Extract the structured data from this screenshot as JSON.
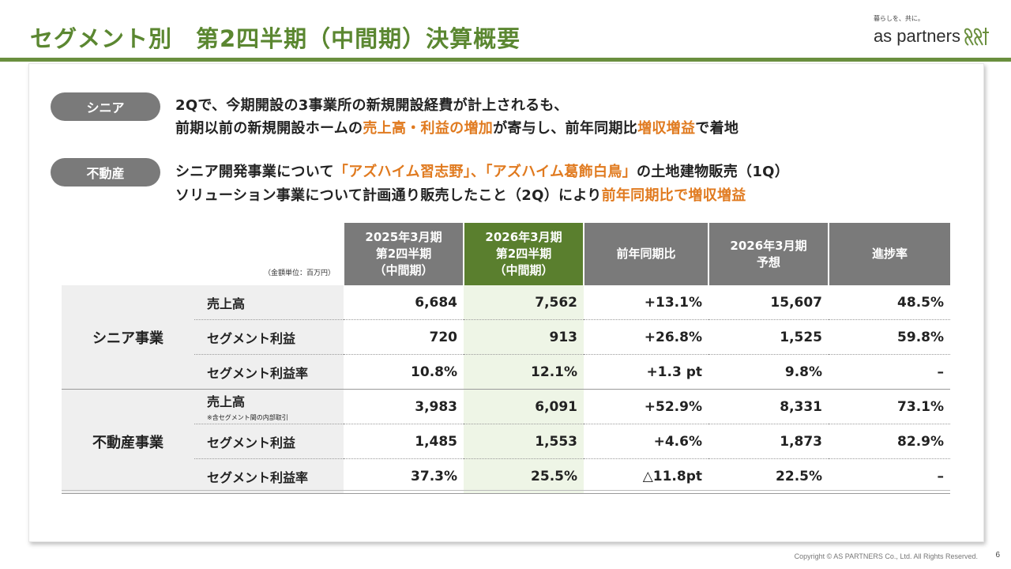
{
  "header": {
    "title": "セグメント別　第2四半期（中間期）決算概要",
    "logo_tagline": "暮らしを、共に。",
    "logo_name": "as partners"
  },
  "summaries": [
    {
      "tag": "シニア",
      "line1": "2Qで、今期開設の3事業所の新規開設経費が計上されるも、",
      "line2_pre": "前期以前の新規開設ホームの",
      "line2_hl1": "売上高・利益の増加",
      "line2_mid": "が寄与し、前年同期比",
      "line2_hl2": "増収増益",
      "line2_post": "で着地"
    },
    {
      "tag": "不動産",
      "line1_pre": "シニア開発事業について",
      "line1_hl": "「アズハイム習志野」、「アズハイム葛飾白鳥」",
      "line1_post": "の土地建物販売（1Q）",
      "line2_pre": "ソリューション事業について計画通り販売したこと（2Q）により",
      "line2_hl": "前年同期比で増収増益"
    }
  ],
  "table": {
    "unit_note": "（金額単位：百万円）",
    "headers": [
      [
        "2025年3月期",
        "第2四半期",
        "（中間期）"
      ],
      [
        "2026年3月期",
        "第2四半期",
        "（中間期）"
      ],
      [
        "前年同期比"
      ],
      [
        "2026年3月期",
        "予想"
      ],
      [
        "進捗率"
      ]
    ],
    "segments": [
      {
        "name": "シニア事業",
        "rows": [
          {
            "label": "売上高",
            "note": "",
            "prev": "6,684",
            "curr": "7,562",
            "yoy": "+13.1%",
            "forecast": "15,607",
            "progress": "48.5%"
          },
          {
            "label": "セグメント利益",
            "note": "",
            "prev": "720",
            "curr": "913",
            "yoy": "+26.8%",
            "forecast": "1,525",
            "progress": "59.8%"
          },
          {
            "label": "セグメント利益率",
            "note": "",
            "prev": "10.8%",
            "curr": "12.1%",
            "yoy": "+1.3 pt",
            "forecast": "9.8%",
            "progress": "–"
          }
        ]
      },
      {
        "name": "不動産事業",
        "rows": [
          {
            "label": "売上高",
            "note": "※含セグメント間の内部取引",
            "prev": "3,983",
            "curr": "6,091",
            "yoy": "+52.9%",
            "forecast": "8,331",
            "progress": "73.1%"
          },
          {
            "label": "セグメント利益",
            "note": "",
            "prev": "1,485",
            "curr": "1,553",
            "yoy": "+4.6%",
            "forecast": "1,873",
            "progress": "82.9%"
          },
          {
            "label": "セグメント利益率",
            "note": "",
            "prev": "37.3%",
            "curr": "25.5%",
            "yoy": "△11.8pt",
            "forecast": "22.5%",
            "progress": "–"
          }
        ]
      }
    ]
  },
  "footer": {
    "copyright": "Copyright © AS PARTNERS Co., Ltd. All Rights Reserved.",
    "page_number": "6"
  },
  "colors": {
    "brand_green": "#5b8731",
    "highlight_orange": "#e07a1f",
    "header_gray": "#7a7a7a",
    "current_period_green": "#5a7f2e"
  }
}
